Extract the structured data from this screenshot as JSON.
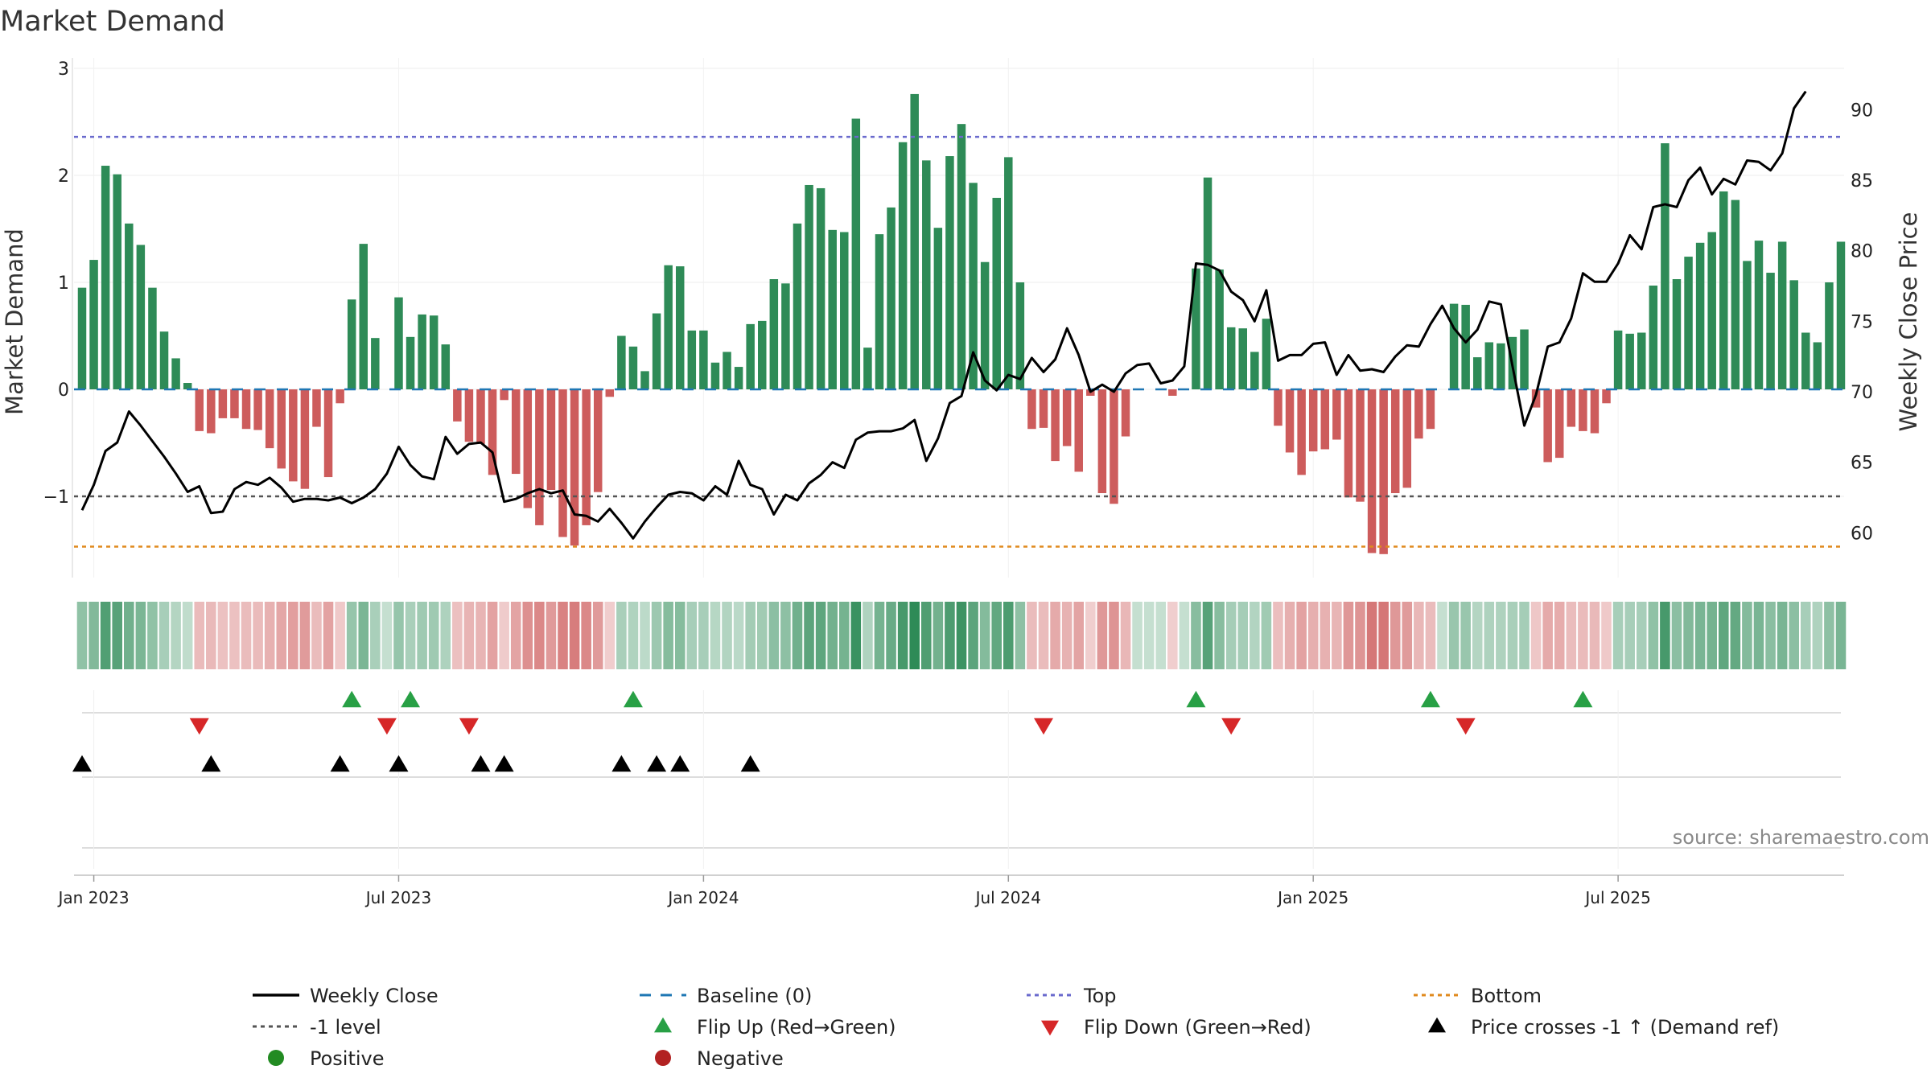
{
  "chart_data": {
    "type": "bar",
    "title": "Market Demand",
    "ylabel_left": "Market Demand",
    "ylabel_right": "Weekly Close Price",
    "y_left_range": [
      -1.78,
      3.0
    ],
    "y_left_ticks": [
      "3",
      "2",
      "1",
      "0",
      "−1"
    ],
    "y_left_tick_values": [
      3,
      2,
      1,
      0,
      -1
    ],
    "y_right_range": [
      56.9,
      93.2
    ],
    "y_right_ticks": [
      "90",
      "85",
      "80",
      "75",
      "70",
      "65",
      "60"
    ],
    "y_right_tick_values": [
      90,
      85,
      80,
      75,
      70,
      65,
      60
    ],
    "levels": {
      "top": 2.36,
      "minus_one": -1.0,
      "bottom": -1.47,
      "baseline": 0
    },
    "x_tick_labels": [
      "Jan 2023",
      "Jul 2023",
      "Jan 2024",
      "Jul 2024",
      "Jan 2025",
      "Jul 2025"
    ],
    "x_tick_weeks": [
      1,
      27,
      53,
      79,
      105,
      131
    ],
    "demand": [
      0.95,
      1.21,
      2.09,
      2.01,
      1.55,
      1.35,
      0.95,
      0.54,
      0.29,
      0.06,
      -0.39,
      -0.41,
      -0.27,
      -0.27,
      -0.37,
      -0.38,
      -0.55,
      -0.74,
      -0.86,
      -0.93,
      -0.35,
      -0.82,
      -0.13,
      0.84,
      1.36,
      0.48,
      0,
      0.86,
      0.49,
      0.7,
      0.69,
      0.42,
      -0.3,
      -0.49,
      -0.51,
      -0.8,
      -0.1,
      -0.79,
      -1.11,
      -1.27,
      -0.94,
      -1.38,
      -1.46,
      -1.27,
      -0.96,
      -0.07,
      0.5,
      0.4,
      0.17,
      0.71,
      1.16,
      1.15,
      0.55,
      0.55,
      0.25,
      0.35,
      0.21,
      0.61,
      0.64,
      1.03,
      0.99,
      1.55,
      1.91,
      1.88,
      1.49,
      1.47,
      2.53,
      0.39,
      1.45,
      1.7,
      2.31,
      2.76,
      2.14,
      1.51,
      2.18,
      2.48,
      1.93,
      1.19,
      1.79,
      2.17,
      1.0,
      -0.37,
      -0.36,
      -0.67,
      -0.53,
      -0.77,
      -0.06,
      -0.97,
      -1.07,
      -0.44,
      0,
      0,
      0,
      -0.06,
      0,
      1.13,
      1.98,
      1.12,
      0.58,
      0.57,
      0.35,
      0.66,
      -0.34,
      -0.59,
      -0.8,
      -0.58,
      -0.56,
      -0.47,
      -1.01,
      -1.05,
      -1.53,
      -1.54,
      -0.97,
      -0.92,
      -0.46,
      -0.37,
      0,
      0.8,
      0.79,
      0.3,
      0.44,
      0.43,
      0.49,
      0.56,
      -0.17,
      -0.68,
      -0.64,
      -0.35,
      -0.39,
      -0.41,
      -0.13,
      0.55,
      0.52,
      0.53,
      0.97,
      2.3,
      1.03,
      1.24,
      1.37,
      1.47,
      1.85,
      1.77,
      1.2,
      1.39,
      1.09,
      1.38,
      1.02,
      0.53,
      0.44,
      1.0,
      1.38
    ],
    "weekly_close": [
      61.6,
      63.4,
      65.8,
      66.4,
      68.6,
      67.6,
      66.5,
      65.4,
      64.2,
      62.9,
      63.3,
      61.4,
      61.5,
      63.1,
      63.6,
      63.4,
      63.9,
      63.2,
      62.2,
      62.4,
      62.4,
      62.3,
      62.5,
      62.1,
      62.5,
      63.1,
      64.2,
      66.1,
      64.8,
      64.0,
      63.8,
      66.8,
      65.6,
      66.3,
      66.4,
      65.7,
      62.2,
      62.4,
      62.8,
      63.1,
      62.8,
      63.0,
      61.3,
      61.2,
      60.8,
      61.7,
      60.7,
      59.6,
      60.8,
      61.8,
      62.7,
      62.9,
      62.8,
      62.3,
      63.3,
      62.7,
      65.1,
      63.4,
      63.1,
      61.3,
      62.7,
      62.3,
      63.5,
      64.1,
      65.0,
      64.6,
      66.6,
      67.1,
      67.2,
      67.2,
      67.4,
      68.0,
      65.1,
      66.7,
      69.2,
      69.7,
      72.8,
      70.8,
      70.1,
      71.2,
      70.9,
      72.4,
      71.4,
      72.3,
      74.5,
      72.6,
      70.0,
      70.5,
      70.0,
      71.3,
      71.9,
      72.0,
      70.6,
      70.8,
      71.8,
      79.1,
      79.0,
      78.6,
      77.1,
      76.5,
      75.0,
      77.2,
      72.2,
      72.6,
      72.6,
      73.4,
      73.5,
      71.2,
      72.6,
      71.5,
      71.6,
      71.4,
      72.5,
      73.3,
      73.2,
      74.8,
      76.1,
      74.5,
      73.5,
      74.4,
      76.4,
      76.2,
      71.8,
      67.6,
      69.8,
      73.2,
      73.5,
      75.2,
      78.4,
      77.8,
      77.8,
      79.1,
      81.1,
      80.1,
      83.1,
      83.3,
      83.1,
      85.0,
      85.9,
      84.0,
      85.1,
      84.7,
      86.4,
      86.3,
      85.7,
      86.9,
      90.1,
      91.3
    ],
    "flip_up_weeks": [
      23,
      28,
      47,
      95,
      115,
      128
    ],
    "flip_down_weeks": [
      10,
      26,
      33,
      82,
      98,
      118
    ],
    "price_cross_weeks": [
      0,
      11,
      22,
      27,
      34,
      36,
      46,
      49,
      51,
      57
    ],
    "legend": [
      "Weekly Close",
      "Baseline (0)",
      "Top",
      "Bottom",
      "-1 level",
      "Flip Up (Red→Green)",
      "Flip Down (Green→Red)",
      "Price crosses -1 ↑ (Demand ref)",
      "Positive",
      "Negative"
    ],
    "source": "source: sharemaestro.com",
    "colors": {
      "positive": "#2e8b57",
      "negative": "#cd5c5c",
      "close": "#000000",
      "baseline": "#1f77b4",
      "top": "#6a6acd",
      "minus_one": "#555555",
      "bottom": "#e08a1e",
      "flip_up": "#28a045",
      "flip_down": "#d62728",
      "positive_dot": "#228b22",
      "negative_dot": "#b22222"
    }
  }
}
